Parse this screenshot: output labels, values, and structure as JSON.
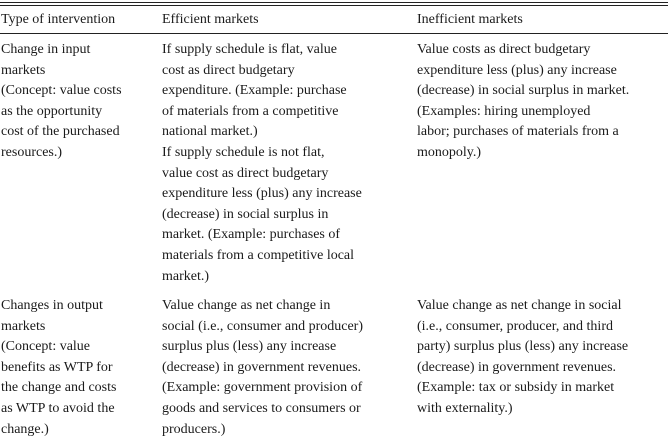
{
  "table": {
    "headers": [
      "Type of intervention",
      "Efficient markets",
      "Inefficient markets"
    ],
    "rows": [
      {
        "type_of_intervention": "Change in input\nmarkets\n(Concept: value costs\nas the opportunity\ncost of the purchased\nresources.)",
        "efficient_markets": "If supply schedule is flat, value\ncost as direct budgetary\nexpenditure. (Example: purchase\nof materials from a competitive\nnational market.)\nIf supply schedule is not flat,\nvalue cost as direct budgetary\nexpenditure less (plus) any increase\n(decrease) in social surplus in\nmarket. (Example: purchases of\nmaterials from a competitive local\nmarket.)",
        "inefficient_markets": "Value costs as direct budgetary\nexpenditure less (plus) any increase\n(decrease) in social surplus in market.\n(Examples: hiring unemployed\nlabor; purchases of materials from a\nmonopoly.)"
      },
      {
        "type_of_intervention": "Changes in output\nmarkets\n(Concept: value\nbenefits as WTP for\nthe change and costs\nas WTP to avoid the\nchange.)",
        "efficient_markets": "Value change as net change in\nsocial (i.e., consumer and producer)\nsurplus plus (less) any increase\n(decrease) in government revenues.\n(Example: government provision of\ngoods and services to consumers or\nproducers.)",
        "inefficient_markets": "Value change as net change in social\n(i.e., consumer, producer, and third\nparty) surplus plus (less) any increase\n(decrease) in government revenues.\n(Example: tax or subsidy in market\nwith externality.)"
      }
    ]
  }
}
